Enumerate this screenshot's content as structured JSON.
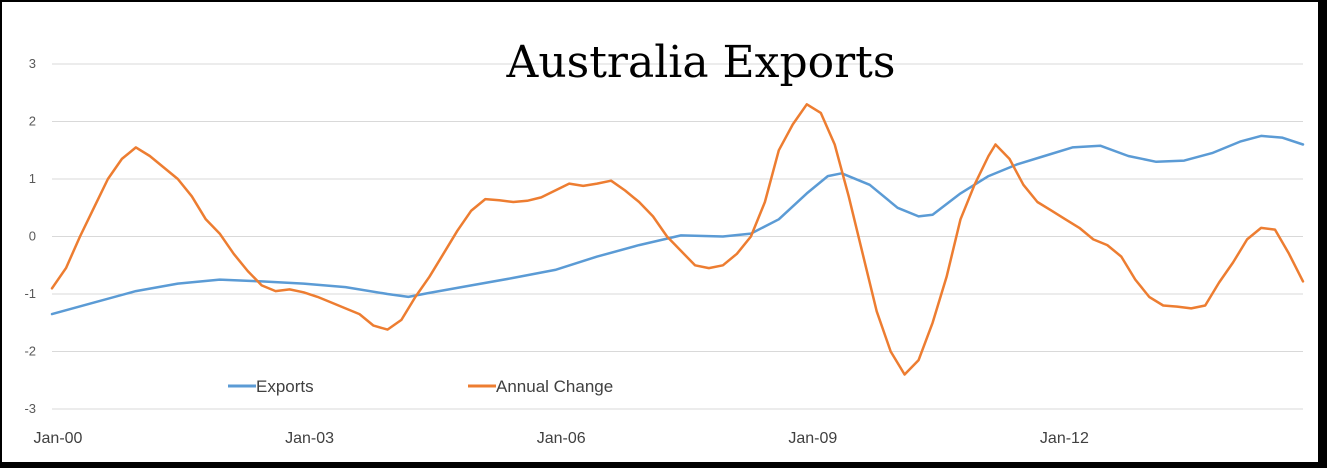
{
  "chart_data": {
    "type": "line",
    "title": "Australia Exports",
    "xlabel": "",
    "ylabel": "",
    "ylim": [
      -3,
      3
    ],
    "y_ticks": [
      3,
      2,
      1,
      0,
      -1,
      -2,
      -3
    ],
    "x_ticks": [
      {
        "label": "Jan-00",
        "x": 0
      },
      {
        "label": "Jan-03",
        "x": 36
      },
      {
        "label": "Jan-06",
        "x": 72
      },
      {
        "label": "Jan-09",
        "x": 108
      },
      {
        "label": "Jan-12",
        "x": 144
      }
    ],
    "xlim": [
      0,
      179
    ],
    "x_unit": "months since Jan-00",
    "grid": true,
    "legend_position": "bottom-left",
    "series": [
      {
        "name": "Exports",
        "color": "#5b9bd5",
        "points": [
          [
            0,
            -1.35
          ],
          [
            6,
            -1.15
          ],
          [
            12,
            -0.95
          ],
          [
            18,
            -0.82
          ],
          [
            24,
            -0.75
          ],
          [
            30,
            -0.78
          ],
          [
            36,
            -0.82
          ],
          [
            42,
            -0.88
          ],
          [
            48,
            -1.0
          ],
          [
            51,
            -1.05
          ],
          [
            54,
            -0.98
          ],
          [
            60,
            -0.85
          ],
          [
            66,
            -0.72
          ],
          [
            72,
            -0.58
          ],
          [
            78,
            -0.35
          ],
          [
            84,
            -0.15
          ],
          [
            90,
            0.02
          ],
          [
            96,
            0.0
          ],
          [
            100,
            0.05
          ],
          [
            104,
            0.3
          ],
          [
            108,
            0.75
          ],
          [
            111,
            1.05
          ],
          [
            113,
            1.1
          ],
          [
            117,
            0.9
          ],
          [
            121,
            0.5
          ],
          [
            124,
            0.35
          ],
          [
            126,
            0.38
          ],
          [
            130,
            0.75
          ],
          [
            134,
            1.05
          ],
          [
            138,
            1.25
          ],
          [
            142,
            1.4
          ],
          [
            146,
            1.55
          ],
          [
            150,
            1.58
          ],
          [
            154,
            1.4
          ],
          [
            158,
            1.3
          ],
          [
            162,
            1.32
          ],
          [
            166,
            1.45
          ],
          [
            170,
            1.65
          ],
          [
            173,
            1.75
          ],
          [
            176,
            1.72
          ],
          [
            179,
            1.6
          ]
        ]
      },
      {
        "name": "Annual Change",
        "color": "#ed7d31",
        "points": [
          [
            0,
            -0.9
          ],
          [
            2,
            -0.55
          ],
          [
            4,
            0.0
          ],
          [
            6,
            0.5
          ],
          [
            8,
            1.0
          ],
          [
            10,
            1.35
          ],
          [
            12,
            1.55
          ],
          [
            14,
            1.4
          ],
          [
            16,
            1.2
          ],
          [
            18,
            1.0
          ],
          [
            20,
            0.7
          ],
          [
            22,
            0.3
          ],
          [
            24,
            0.05
          ],
          [
            26,
            -0.3
          ],
          [
            28,
            -0.6
          ],
          [
            30,
            -0.85
          ],
          [
            32,
            -0.95
          ],
          [
            34,
            -0.92
          ],
          [
            36,
            -0.97
          ],
          [
            38,
            -1.05
          ],
          [
            40,
            -1.15
          ],
          [
            42,
            -1.25
          ],
          [
            44,
            -1.35
          ],
          [
            46,
            -1.55
          ],
          [
            48,
            -1.62
          ],
          [
            50,
            -1.45
          ],
          [
            52,
            -1.05
          ],
          [
            54,
            -0.7
          ],
          [
            56,
            -0.3
          ],
          [
            58,
            0.1
          ],
          [
            60,
            0.45
          ],
          [
            62,
            0.65
          ],
          [
            64,
            0.63
          ],
          [
            66,
            0.6
          ],
          [
            68,
            0.62
          ],
          [
            70,
            0.68
          ],
          [
            72,
            0.8
          ],
          [
            74,
            0.92
          ],
          [
            76,
            0.88
          ],
          [
            78,
            0.92
          ],
          [
            80,
            0.97
          ],
          [
            82,
            0.8
          ],
          [
            84,
            0.6
          ],
          [
            86,
            0.35
          ],
          [
            88,
            0.0
          ],
          [
            90,
            -0.25
          ],
          [
            92,
            -0.5
          ],
          [
            94,
            -0.55
          ],
          [
            96,
            -0.5
          ],
          [
            98,
            -0.3
          ],
          [
            100,
            0.0
          ],
          [
            102,
            0.6
          ],
          [
            104,
            1.5
          ],
          [
            106,
            1.95
          ],
          [
            108,
            2.3
          ],
          [
            110,
            2.15
          ],
          [
            112,
            1.6
          ],
          [
            114,
            0.7
          ],
          [
            116,
            -0.3
          ],
          [
            118,
            -1.3
          ],
          [
            120,
            -2.0
          ],
          [
            122,
            -2.4
          ],
          [
            124,
            -2.15
          ],
          [
            126,
            -1.5
          ],
          [
            128,
            -0.7
          ],
          [
            130,
            0.3
          ],
          [
            132,
            0.9
          ],
          [
            134,
            1.4
          ],
          [
            135,
            1.6
          ],
          [
            137,
            1.35
          ],
          [
            139,
            0.9
          ],
          [
            141,
            0.6
          ],
          [
            143,
            0.45
          ],
          [
            145,
            0.3
          ],
          [
            147,
            0.15
          ],
          [
            149,
            -0.05
          ],
          [
            151,
            -0.15
          ],
          [
            153,
            -0.35
          ],
          [
            155,
            -0.75
          ],
          [
            157,
            -1.05
          ],
          [
            159,
            -1.2
          ],
          [
            161,
            -1.22
          ],
          [
            163,
            -1.25
          ],
          [
            165,
            -1.2
          ],
          [
            167,
            -0.8
          ],
          [
            169,
            -0.45
          ],
          [
            171,
            -0.05
          ],
          [
            173,
            0.15
          ],
          [
            175,
            0.12
          ],
          [
            177,
            -0.3
          ],
          [
            179,
            -0.78
          ]
        ]
      }
    ]
  }
}
